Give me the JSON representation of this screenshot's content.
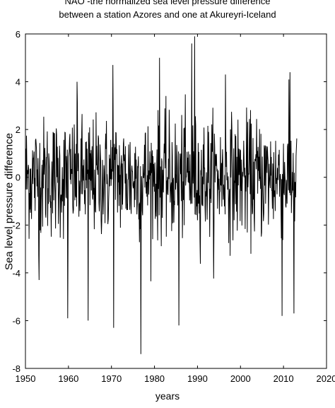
{
  "chart_data": {
    "type": "line",
    "title_lines": [
      "NAO -the normalized sea level pressure difference",
      "between a station Azores and one at Akureyri-Iceland"
    ],
    "xlabel": "years",
    "ylabel": "Sea level pressure difference",
    "xlim": [
      1950,
      2020
    ],
    "ylim": [
      -8,
      6
    ],
    "xticks": [
      1950,
      1960,
      1970,
      1980,
      1990,
      2000,
      2010,
      2020
    ],
    "yticks": [
      6,
      4,
      2,
      0,
      -2,
      -4,
      -6,
      -8
    ],
    "xtick_labels": [
      "1950",
      "1960",
      "1970",
      "1980",
      "1990",
      "2000",
      "2010",
      "2020"
    ],
    "ytick_labels": [
      "6",
      "4",
      "2",
      "0",
      "-2",
      "-4",
      "-6",
      "-8"
    ],
    "series_description": "monthly NAO index, 1950 to about 2013",
    "x_start": 1950.0,
    "x_end": 2013.2,
    "typical_range": [
      -2,
      2
    ],
    "extremes": [
      {
        "x": 1976.8,
        "y": -7.4
      },
      {
        "x": 1970.5,
        "y": -6.3
      },
      {
        "x": 1959.8,
        "y": -5.9
      },
      {
        "x": 1964.6,
        "y": -6.0
      },
      {
        "x": 1985.7,
        "y": -6.2
      },
      {
        "x": 2009.7,
        "y": -5.8
      },
      {
        "x": 2012.4,
        "y": -5.7
      },
      {
        "x": 1989.3,
        "y": 5.9
      },
      {
        "x": 1988.7,
        "y": 5.6
      },
      {
        "x": 1981.2,
        "y": 5.0
      },
      {
        "x": 1970.3,
        "y": 4.7
      },
      {
        "x": 2011.5,
        "y": 4.4
      },
      {
        "x": 1962.0,
        "y": 4.0
      },
      {
        "x": 1996.5,
        "y": 4.3
      },
      {
        "x": 1953.2,
        "y": -4.3
      }
    ],
    "grid": false,
    "line_color": "#000000"
  }
}
